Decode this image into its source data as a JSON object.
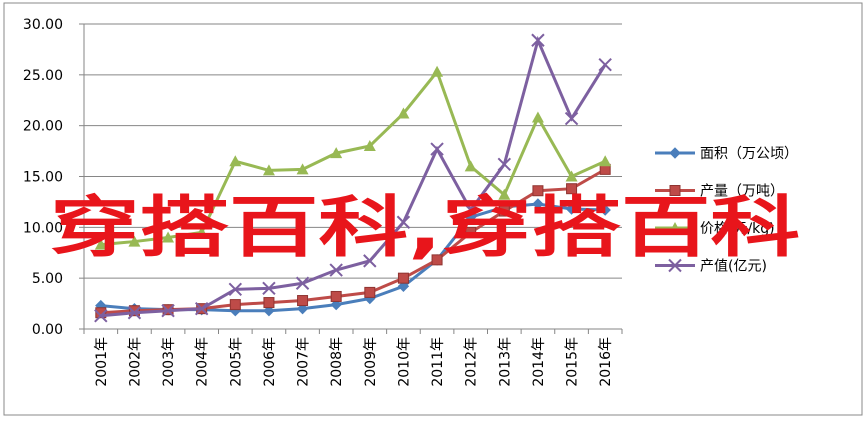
{
  "chart_data": {
    "type": "line",
    "categories": [
      "2001年",
      "2002年",
      "2003年",
      "2004年",
      "2005年",
      "2006年",
      "2007年",
      "2008年",
      "2009年",
      "2010年",
      "2011年",
      "2012年",
      "2013年",
      "2014年",
      "2015年",
      "2016年"
    ],
    "series": [
      {
        "name": "面积（万公顷）",
        "color": "#4a7ebb",
        "marker": "diamond",
        "values": [
          2.3,
          2.0,
          1.9,
          1.9,
          1.8,
          1.8,
          2.0,
          2.4,
          3.0,
          4.2,
          6.8,
          11.0,
          12.0,
          12.3,
          11.8,
          11.7
        ]
      },
      {
        "name": "产量（万吨）",
        "color": "#be4b48",
        "marker": "square",
        "values": [
          1.6,
          1.8,
          1.9,
          2.0,
          2.4,
          2.6,
          2.8,
          3.2,
          3.6,
          5.0,
          6.8,
          9.5,
          11.6,
          13.6,
          13.8,
          15.7
        ]
      },
      {
        "name": "价格(元/kg)",
        "color": "#98b954",
        "marker": "triangle",
        "values": [
          8.3,
          8.6,
          9.0,
          9.5,
          16.5,
          15.6,
          15.7,
          17.3,
          18.0,
          21.2,
          25.3,
          16.0,
          13.2,
          20.8,
          15.0,
          16.5
        ]
      },
      {
        "name": "产值(亿元)",
        "color": "#7d60a0",
        "marker": "x",
        "values": [
          1.3,
          1.6,
          1.8,
          2.0,
          3.9,
          4.0,
          4.5,
          5.8,
          6.7,
          10.5,
          17.7,
          11.7,
          16.2,
          28.4,
          20.7,
          26.0
        ]
      }
    ],
    "ylim": [
      0,
      30
    ],
    "yticks": [
      {
        "value": 0,
        "label": "0.00"
      },
      {
        "value": 5,
        "label": "5.00"
      },
      {
        "value": 10,
        "label": "10.00"
      },
      {
        "value": 15,
        "label": "15.00"
      },
      {
        "value": 20,
        "label": "20.00"
      },
      {
        "value": 25,
        "label": "25.00"
      },
      {
        "value": 30,
        "label": "30.00"
      }
    ],
    "grid": true,
    "legend": "right",
    "watermark": "穿搭百科,穿搭百科"
  }
}
